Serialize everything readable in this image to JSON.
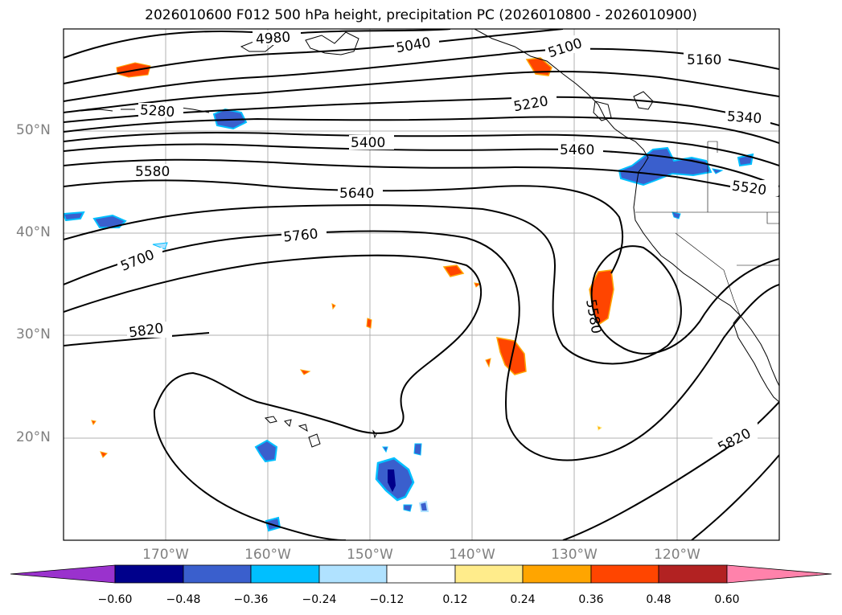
{
  "title": "2026010600 F012 500 hPa height, precipitation PC (2026010800 - 2026010900)",
  "lat_labels": [
    {
      "text": "50°N",
      "lat": 50
    },
    {
      "text": "40°N",
      "lat": 40
    },
    {
      "text": "30°N",
      "lat": 30
    },
    {
      "text": "20°N",
      "lat": 20
    }
  ],
  "lon_labels": [
    {
      "text": "170°W",
      "lon": -170
    },
    {
      "text": "160°W",
      "lon": -160
    },
    {
      "text": "150°W",
      "lon": -150
    },
    {
      "text": "140°W",
      "lon": -140
    },
    {
      "text": "130°W",
      "lon": -130
    },
    {
      "text": "120°W",
      "lon": -120
    }
  ],
  "contour_labels": [
    "4980",
    "5040",
    "5100",
    "5160",
    "5220",
    "5280",
    "5340",
    "5400",
    "5460",
    "5520",
    "5580",
    "5640",
    "5700",
    "5760",
    "5820",
    "5580",
    "5820"
  ],
  "colorbar": {
    "colors": [
      "#9a32cd",
      "#00008b",
      "#3a5fcd",
      "#00bfff",
      "#b0e2ff",
      "#ffffff",
      "#ffec8b",
      "#ffa500",
      "#ff4500",
      "#b22222",
      "#ff82ab"
    ],
    "ticks": [
      "−0.60",
      "−0.48",
      "−0.36",
      "−0.24",
      "−0.12",
      "0.12",
      "0.24",
      "0.36",
      "0.48",
      "0.60"
    ]
  },
  "chart_data": {
    "type": "map",
    "title": "2026010600 F012 500 hPa height, precipitation PC (2026010800 - 2026010900)",
    "variable_contours": "500 hPa geopotential height (m)",
    "variable_shaded": "precipitation PC",
    "extent": {
      "lon_min": -180,
      "lon_max": -110,
      "lat_min": 10,
      "lat_max": 60
    },
    "contour_levels": [
      4980,
      5040,
      5100,
      5160,
      5220,
      5280,
      5340,
      5400,
      5460,
      5520,
      5580,
      5640,
      5700,
      5760,
      5820
    ],
    "colorbar_levels": [
      -0.6,
      -0.48,
      -0.36,
      -0.24,
      -0.12,
      0.12,
      0.24,
      0.36,
      0.48,
      0.6
    ],
    "colorbar_extend": "both"
  }
}
